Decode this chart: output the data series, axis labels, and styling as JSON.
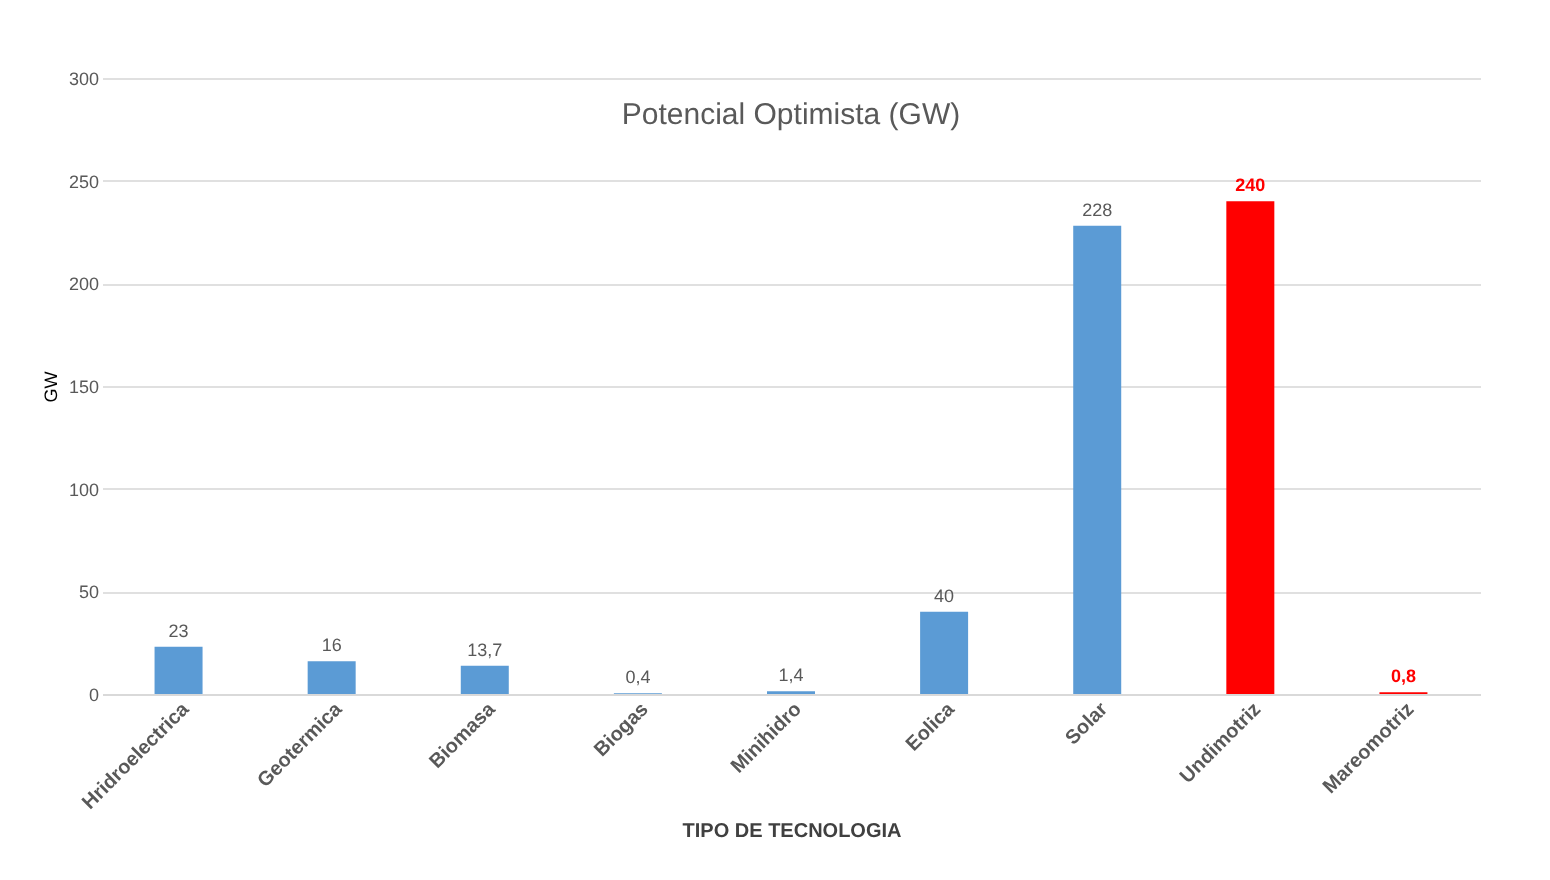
{
  "chart_data": {
    "type": "bar",
    "title": "Potencial  Optimista (GW)",
    "xlabel": "TIPO DE TECNOLOGIA",
    "ylabel": "GW",
    "categories": [
      "Hridroelectrica",
      "Geotermica",
      "Biomasa",
      "Biogas",
      "Minihidro",
      "Eolica",
      "Solar",
      "Undimotriz",
      "Mareomotriz"
    ],
    "values": [
      23,
      16,
      13.7,
      0.4,
      1.4,
      40,
      228,
      240,
      0.8
    ],
    "value_labels": [
      "23",
      "16",
      "13,7",
      "0,4",
      "1,4",
      "40",
      "228",
      "240",
      "0,8"
    ],
    "color": "#5b9bd5",
    "colors": [
      "#5b9bd5",
      "#5b9bd5",
      "#5b9bd5",
      "#5b9bd5",
      "#5b9bd5",
      "#5b9bd5",
      "#5b9bd5",
      "#ff0000",
      "#ff0000"
    ],
    "ylim": [
      0,
      300
    ],
    "yticks": [
      0,
      50,
      100,
      150,
      200,
      250,
      300
    ],
    "grid": "y"
  }
}
